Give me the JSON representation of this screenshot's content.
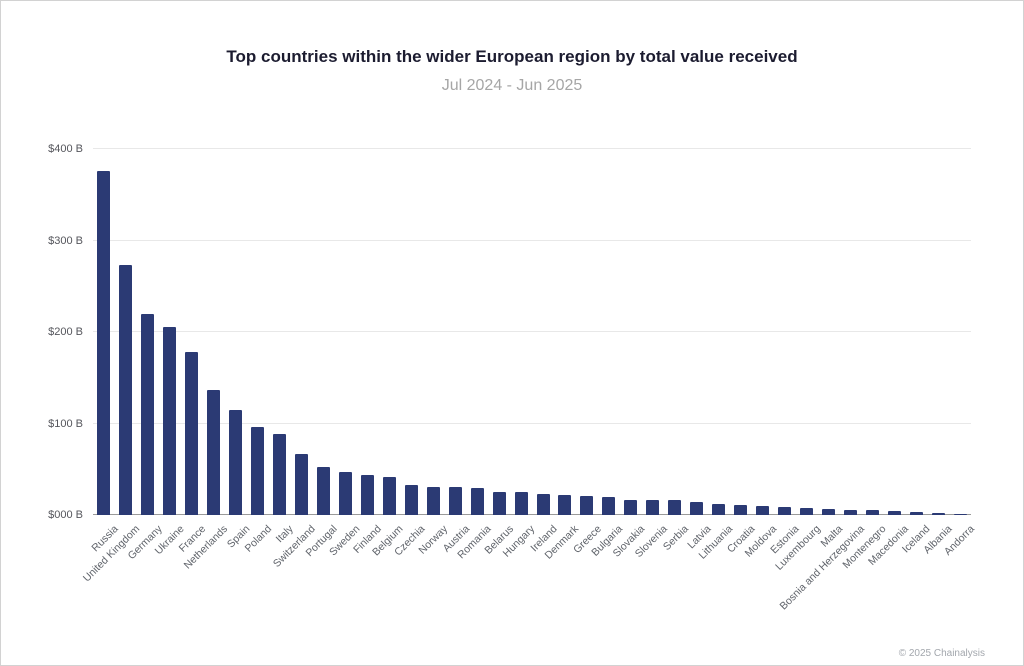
{
  "title": "Top countries within the wider European region by total value received",
  "subtitle": "Jul 2024 - Jun 2025",
  "footer": "© 2025 Chainalysis",
  "chart_data": {
    "type": "bar",
    "title": "Top countries within the wider European region by total value received",
    "subtitle": "Jul 2024 - Jun 2025",
    "xlabel": "",
    "ylabel": "",
    "ylim": [
      0,
      400
    ],
    "grid": true,
    "bar_color": "#2b3a74",
    "yticks": [
      {
        "value": 0,
        "label": "$000 B"
      },
      {
        "value": 100,
        "label": "$100 B"
      },
      {
        "value": 200,
        "label": "$200 B"
      },
      {
        "value": 300,
        "label": "$300 B"
      },
      {
        "value": 400,
        "label": "$400 B"
      }
    ],
    "categories": [
      "Russia",
      "United Kingdom",
      "Germany",
      "Ukraine",
      "France",
      "Netherlands",
      "Spain",
      "Poland",
      "Italy",
      "Switzerland",
      "Portugal",
      "Sweden",
      "Finland",
      "Belgium",
      "Czechia",
      "Norway",
      "Austria",
      "Romania",
      "Belarus",
      "Hungary",
      "Ireland",
      "Denmark",
      "Greece",
      "Bulgaria",
      "Slovakia",
      "Slovenia",
      "Serbia",
      "Latvia",
      "Lithuania",
      "Croatia",
      "Moldova",
      "Estonia",
      "Luxembourg",
      "Malta",
      "Bosnia and Herzegovina",
      "Montenegro",
      "Macedonia",
      "Iceland",
      "Albania",
      "Andorra"
    ],
    "values": [
      376,
      273,
      220,
      205,
      178,
      137,
      115,
      96,
      88,
      67,
      53,
      47,
      44,
      42,
      33,
      31,
      31,
      30,
      25,
      25,
      23,
      22,
      21,
      20,
      16,
      16,
      16,
      14,
      12,
      11,
      10,
      9,
      8,
      7,
      5,
      5,
      4,
      3,
      2,
      1
    ]
  }
}
